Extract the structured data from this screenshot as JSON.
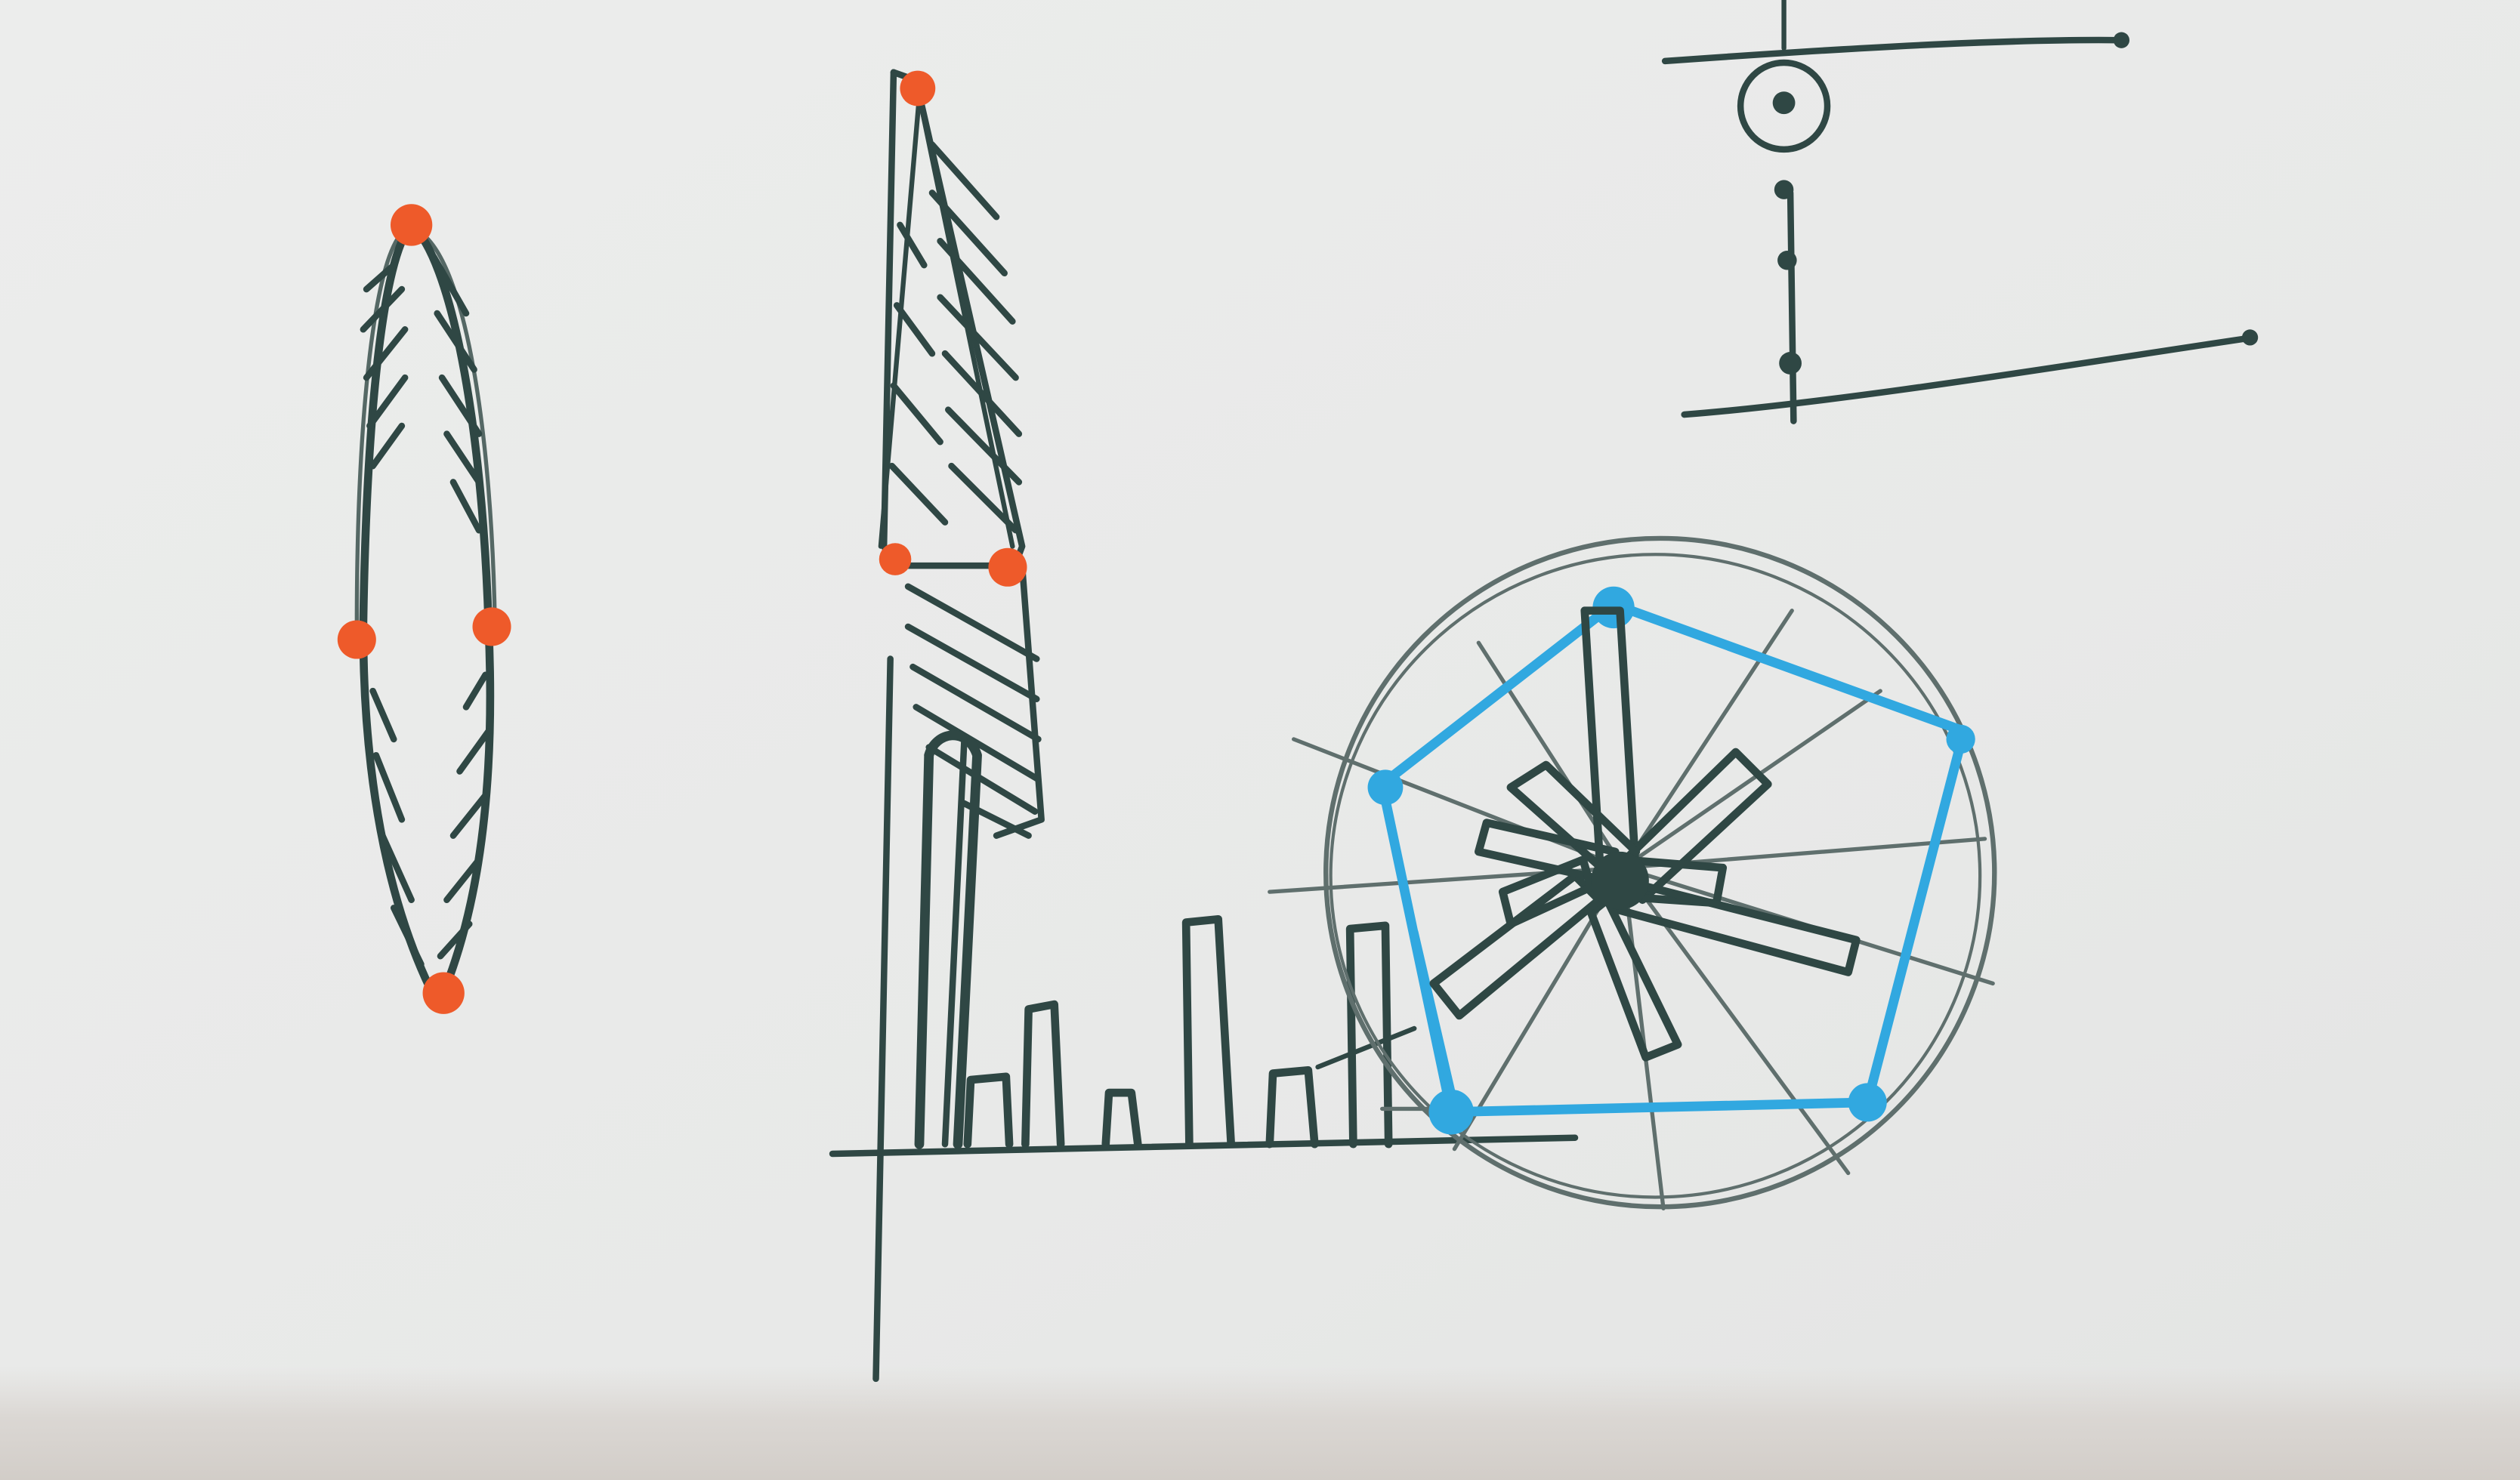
{
  "image": {
    "kind": "photograph-of-hand-drawn-sketch",
    "palette": {
      "paper": "#ecedec",
      "paper_shadow": "#d9d5d1",
      "ink": "#2f4744",
      "pencil": "#5f6f6d",
      "orange_marker": "#ee5a2a",
      "blue_marker": "#31a8e0"
    }
  }
}
